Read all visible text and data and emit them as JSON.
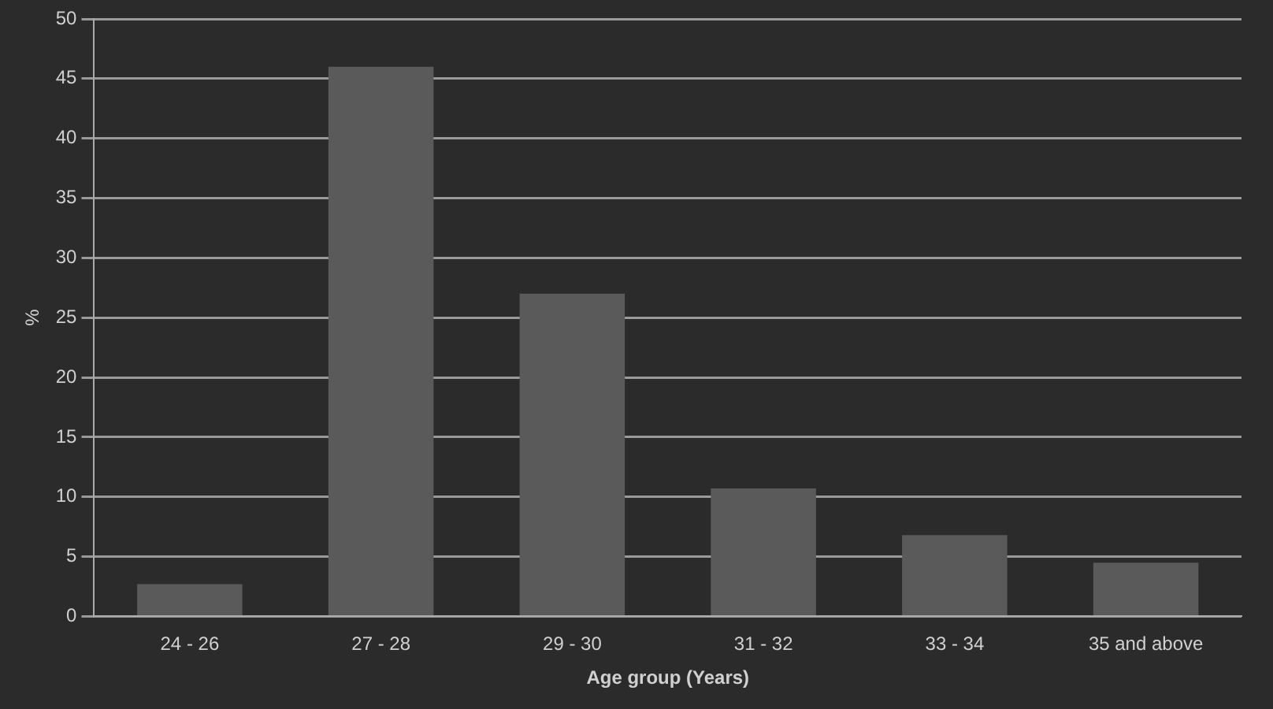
{
  "chart_data": {
    "type": "bar",
    "xlabel": "Age group (Years)",
    "ylabel": "%",
    "categories": [
      "24 - 26",
      "27 - 28",
      "29 - 30",
      "31 - 32",
      "33 - 34",
      "35 and above"
    ],
    "values": [
      2.7,
      46,
      27,
      10.7,
      6.8,
      4.5
    ],
    "color": "#5a5a5a",
    "ylim": [
      0,
      50
    ],
    "yticks": [
      0,
      5,
      10,
      15,
      20,
      25,
      30,
      35,
      40,
      45,
      50
    ],
    "grid": "y"
  }
}
